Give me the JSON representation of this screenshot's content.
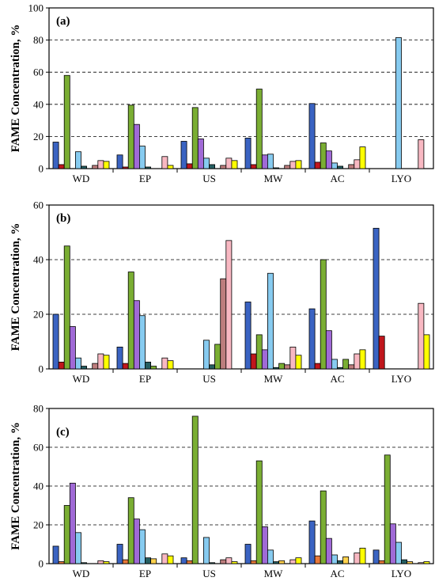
{
  "chart_data": [
    {
      "type": "bar",
      "panel_label": "(a)",
      "ylabel": "FAME Concentration, %",
      "ylim": [
        0,
        100
      ],
      "yticks": [
        0,
        20,
        40,
        60,
        80,
        100
      ],
      "grid": true,
      "categories": [
        "WD",
        "EP",
        "US",
        "MW",
        "AC",
        "LYO"
      ],
      "series": [
        {
          "color": "#3a63c2",
          "values": [
            16.5,
            8.5,
            17,
            19,
            40.5,
            0
          ]
        },
        {
          "color": "#c0161c",
          "values": [
            2.5,
            1,
            3,
            2.5,
            4,
            0
          ]
        },
        {
          "color": "#7aae33",
          "values": [
            58,
            39.5,
            38,
            49.5,
            16,
            0
          ]
        },
        {
          "color": "#a06ad6",
          "values": [
            0,
            27.5,
            18.5,
            8.5,
            11,
            0
          ]
        },
        {
          "color": "#87cbf0",
          "values": [
            10.5,
            14,
            6.5,
            9,
            3.5,
            81.5
          ]
        },
        {
          "color": "#255e61",
          "values": [
            1.5,
            1,
            2.5,
            0.5,
            1.5,
            0
          ]
        },
        {
          "color": "#e8a85b",
          "values": [
            0,
            0,
            0,
            0,
            0,
            0
          ]
        },
        {
          "color": "#bd7d7d",
          "values": [
            2,
            0,
            2,
            2,
            2.5,
            0
          ]
        },
        {
          "color": "#f8b8c2",
          "values": [
            5,
            7.5,
            6.5,
            4.5,
            5.5,
            18
          ]
        },
        {
          "color": "#ffff00",
          "values": [
            4.5,
            2,
            5,
            5,
            13.5,
            0
          ]
        }
      ]
    },
    {
      "type": "bar",
      "panel_label": "(b)",
      "ylabel": "FAME Concentration, %",
      "ylim": [
        0,
        60
      ],
      "yticks": [
        0,
        20,
        40,
        60
      ],
      "grid": true,
      "categories": [
        "WD",
        "EP",
        "US",
        "MW",
        "AC",
        "LYO"
      ],
      "series": [
        {
          "color": "#3a63c2",
          "values": [
            20,
            8,
            0,
            24.5,
            22,
            51.5
          ]
        },
        {
          "color": "#c0161c",
          "values": [
            2.5,
            2,
            0,
            5.5,
            2,
            12
          ]
        },
        {
          "color": "#7aae33",
          "values": [
            45,
            35.5,
            0,
            12.5,
            40,
            0
          ]
        },
        {
          "color": "#a06ad6",
          "values": [
            15.5,
            25,
            0,
            7,
            14,
            0
          ]
        },
        {
          "color": "#87cbf0",
          "values": [
            4,
            19.5,
            10.5,
            35,
            3.5,
            0
          ]
        },
        {
          "color": "#255e61",
          "values": [
            1,
            2.5,
            1.5,
            0.5,
            0.5,
            0
          ]
        },
        {
          "color": "#7aae33",
          "values": [
            0,
            1,
            9,
            2,
            3.5,
            0
          ]
        },
        {
          "color": "#bd7d7d",
          "values": [
            2,
            0,
            33,
            1.5,
            1.5,
            0
          ]
        },
        {
          "color": "#f8b8c2",
          "values": [
            5.5,
            4,
            47,
            8,
            5.5,
            24
          ]
        },
        {
          "color": "#ffff00",
          "values": [
            5,
            3,
            0,
            5,
            7,
            12.5
          ]
        }
      ]
    },
    {
      "type": "bar",
      "panel_label": "(c)",
      "ylabel": "FAME Concentration, %",
      "ylim": [
        0,
        80
      ],
      "yticks": [
        0,
        20,
        40,
        60,
        80
      ],
      "grid": true,
      "categories": [
        "WD",
        "EP",
        "US",
        "MW",
        "AC",
        "LYO"
      ],
      "series": [
        {
          "color": "#3a63c2",
          "values": [
            9,
            10,
            3,
            10,
            22,
            7
          ]
        },
        {
          "color": "#e8793a",
          "values": [
            1,
            2,
            1.5,
            1.5,
            4,
            1.5
          ]
        },
        {
          "color": "#7aae33",
          "values": [
            30,
            34,
            76,
            53,
            37.5,
            56
          ]
        },
        {
          "color": "#a06ad6",
          "values": [
            41.5,
            23,
            0,
            19,
            13,
            20.5
          ]
        },
        {
          "color": "#87cbf0",
          "values": [
            16,
            17.5,
            13.5,
            7,
            4.5,
            11
          ]
        },
        {
          "color": "#255e61",
          "values": [
            0.5,
            3,
            0.5,
            1,
            1.5,
            2
          ]
        },
        {
          "color": "#ffd24d",
          "values": [
            0,
            2.5,
            0,
            1.5,
            3.5,
            1
          ]
        },
        {
          "color": "#bd7d7d",
          "values": [
            0,
            0,
            2,
            0,
            0,
            0
          ]
        },
        {
          "color": "#f8b8c2",
          "values": [
            1.5,
            5,
            3,
            2,
            5.5,
            0.5
          ]
        },
        {
          "color": "#ffff00",
          "values": [
            1,
            4,
            1,
            3,
            8,
            1
          ]
        }
      ]
    }
  ]
}
